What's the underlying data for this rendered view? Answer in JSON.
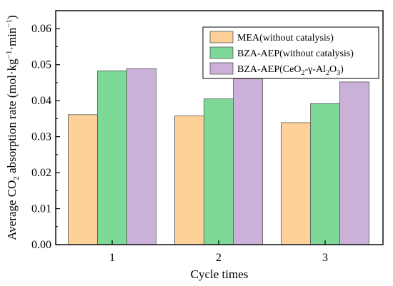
{
  "chart_data": {
    "type": "bar",
    "categories": [
      "1",
      "2",
      "3"
    ],
    "series": [
      {
        "name": "MEA(without catalysis)",
        "values": [
          0.0361,
          0.0358,
          0.0339
        ],
        "color": "#fdd198"
      },
      {
        "name": "BZA-AEP(without catalysis)",
        "values": [
          0.0483,
          0.0405,
          0.0392
        ],
        "color": "#7ed897"
      },
      {
        "name": "BZA-AEP(CeO2-γ-Al2O3)",
        "values": [
          0.0489,
          0.0461,
          0.0452
        ],
        "color": "#cbb0d7"
      }
    ],
    "xlabel": "Cycle times",
    "ylabel": "Average CO2 absorption rate (mol·kg−1·min−1)",
    "ylim": [
      0,
      0.065
    ],
    "yticks": [
      "0.00",
      "0.01",
      "0.02",
      "0.03",
      "0.04",
      "0.05",
      "0.06"
    ],
    "grid": false,
    "legend_position": "top-right"
  },
  "labels": {
    "xlabel": "Cycle times",
    "ylabel_prefix": "Average CO",
    "ylabel_co2_sub": "2",
    "ylabel_middle": " absorption rate (mol·kg",
    "ylabel_sup1": "−1",
    "ylabel_dot": "·min",
    "ylabel_sup2": "−1",
    "ylabel_suffix": ")",
    "legend_1": "MEA(without catalysis)",
    "legend_2": "BZA-AEP(without catalysis)",
    "legend_3_prefix": "BZA-AEP(CeO",
    "legend_3_sub1": "2",
    "legend_3_mid": "-γ-Al",
    "legend_3_sub2": "2",
    "legend_3_o": "O",
    "legend_3_sub3": "3",
    "legend_3_suffix": ")"
  }
}
